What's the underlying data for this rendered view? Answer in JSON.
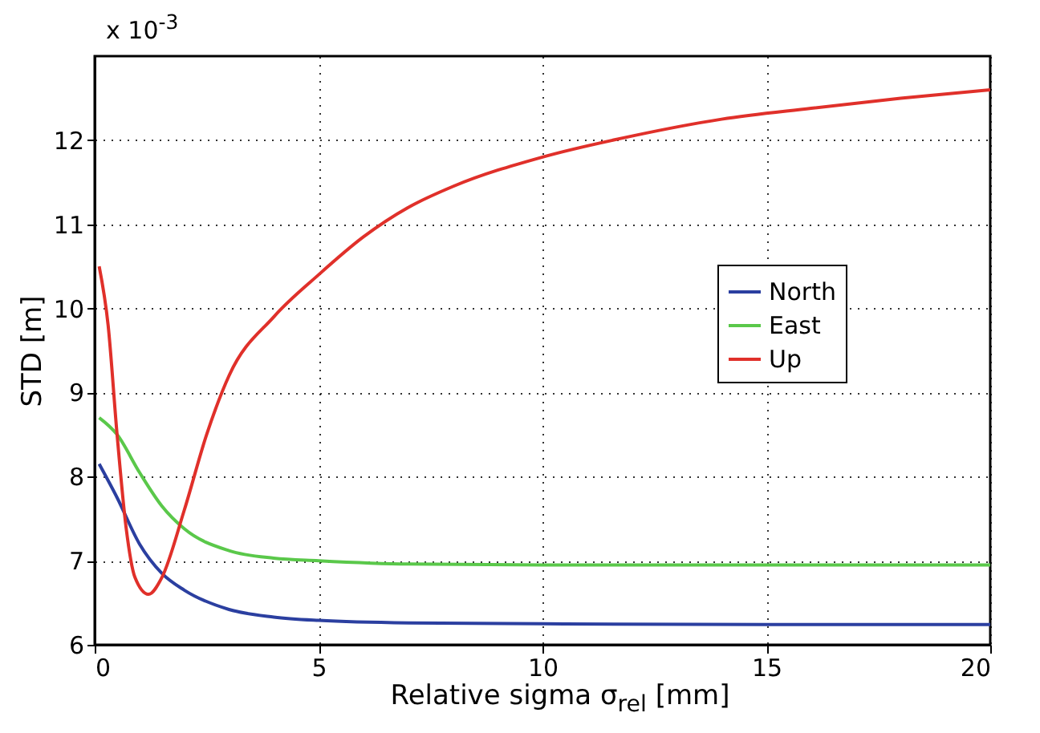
{
  "chart_data": {
    "type": "line",
    "xlabel": "Relative sigma σ$_{rel}$ [mm]",
    "ylabel": "STD [m]",
    "annotations": [
      "x 10$^{-3}$"
    ],
    "xlim": [
      0,
      20
    ],
    "xticks": [
      0,
      5,
      10,
      15,
      20
    ],
    "ylim": [
      6,
      13
    ],
    "yticks": [
      6,
      7,
      8,
      9,
      10,
      11,
      12
    ],
    "grid": true,
    "legend": "right",
    "line_style": "solid",
    "series": [
      {
        "name": "North",
        "color": "#2b3fa0",
        "x": [
          0.1,
          0.5,
          1,
          1.5,
          2,
          3,
          4,
          5,
          7,
          10,
          15,
          20
        ],
        "values": [
          8.15,
          7.75,
          7.2,
          6.85,
          6.65,
          6.42,
          6.33,
          6.29,
          6.26,
          6.25,
          6.24,
          6.24
        ]
      },
      {
        "name": "East",
        "color": "#5ac84a",
        "x": [
          0.1,
          0.5,
          1,
          1.5,
          2,
          3,
          4,
          5,
          7,
          10,
          15,
          20
        ],
        "values": [
          8.7,
          8.5,
          8.05,
          7.65,
          7.38,
          7.12,
          7.03,
          7.0,
          6.96,
          6.95,
          6.95,
          6.95
        ]
      },
      {
        "name": "Up",
        "color": "#e0302a",
        "x": [
          0.1,
          0.3,
          0.5,
          0.7,
          0.9,
          1.2,
          1.5,
          2,
          2.5,
          3,
          4,
          5,
          6,
          7,
          8,
          10,
          12,
          14,
          16,
          18,
          20
        ],
        "values": [
          10.5,
          9.8,
          8.5,
          7.4,
          6.8,
          6.6,
          6.8,
          7.6,
          8.5,
          9.2,
          9.9,
          10.4,
          10.85,
          11.2,
          11.45,
          11.8,
          12.05,
          12.25,
          12.38,
          12.5,
          12.6
        ]
      }
    ]
  }
}
